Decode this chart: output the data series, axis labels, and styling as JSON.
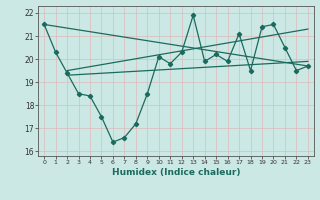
{
  "title": "",
  "xlabel": "Humidex (Indice chaleur)",
  "background_color": "#cce8e4",
  "grid_color": "#b8d8d4",
  "line_color": "#1a6b5e",
  "xlim": [
    -0.5,
    23.5
  ],
  "ylim": [
    15.8,
    22.3
  ],
  "yticks": [
    16,
    17,
    18,
    19,
    20,
    21,
    22
  ],
  "xticks": [
    0,
    1,
    2,
    3,
    4,
    5,
    6,
    7,
    8,
    9,
    10,
    11,
    12,
    13,
    14,
    15,
    16,
    17,
    18,
    19,
    20,
    21,
    22,
    23
  ],
  "data_x": [
    0,
    1,
    2,
    3,
    4,
    5,
    6,
    7,
    8,
    9,
    10,
    11,
    12,
    13,
    14,
    15,
    16,
    17,
    18,
    19,
    20,
    21,
    22,
    23
  ],
  "data_y": [
    21.5,
    20.3,
    19.4,
    18.5,
    18.4,
    17.5,
    16.4,
    16.6,
    17.2,
    18.5,
    20.1,
    19.8,
    20.3,
    21.9,
    19.9,
    20.2,
    19.9,
    21.1,
    19.5,
    21.4,
    21.5,
    20.5,
    19.5,
    19.7
  ],
  "trend1_x": [
    0,
    23
  ],
  "trend1_y": [
    21.5,
    19.7
  ],
  "trend2_x": [
    2,
    23
  ],
  "trend2_y": [
    19.5,
    21.3
  ],
  "trend3_x": [
    2,
    23
  ],
  "trend3_y": [
    19.3,
    19.9
  ]
}
